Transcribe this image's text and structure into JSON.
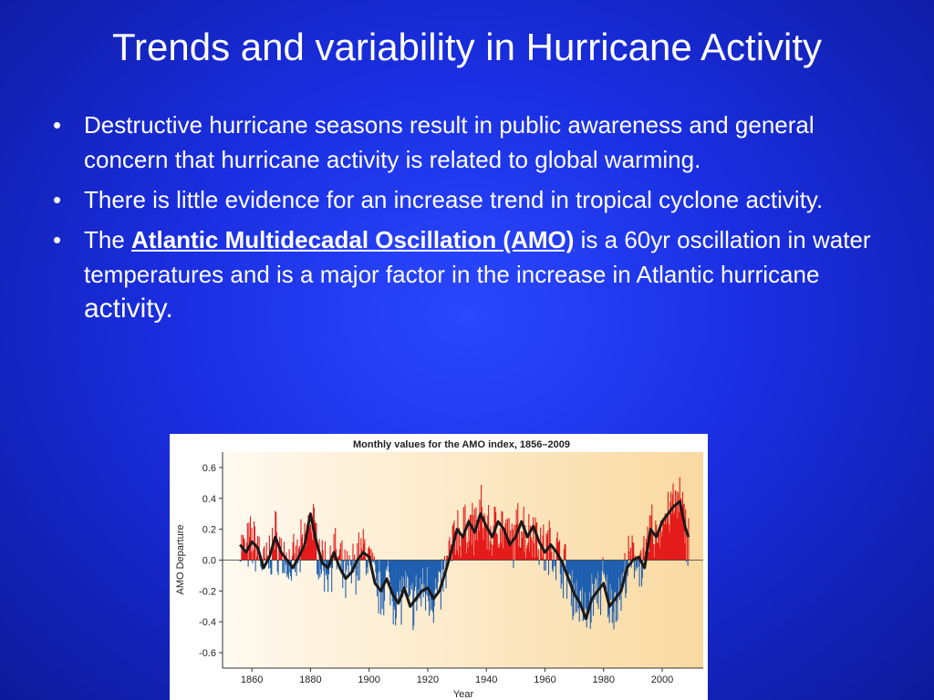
{
  "slide": {
    "title": "Trends and variability in Hurricane Activity",
    "bullets": [
      {
        "marker": "•",
        "text": "Destructive hurricane seasons result in public awareness and general concern that hurricane activity is related to global warming."
      },
      {
        "marker": "•",
        "text": "There is little evidence for an increase trend in tropical cyclone activity."
      },
      {
        "marker": "•",
        "prefix": "The ",
        "link": "Atlantic Multidecadal Oscillation (AMO)",
        "middle": " is a 60yr oscillation in water temperatures and is a major factor in the increase in Atlantic hurricane ",
        "tail": "activity."
      }
    ]
  },
  "colors": {
    "positive": "#e41a1a",
    "negative": "#1f5fb0",
    "smooth_line": "#1a1a1a",
    "plot_bg_light": "#fffaf0",
    "plot_bg_warm": "#f9d9a0"
  },
  "chart_data": {
    "type": "area",
    "title": "Monthly values for the AMO index, 1856–2009",
    "xlabel": "Year",
    "ylabel": "AMO Departure",
    "xlim": [
      1850,
      2014
    ],
    "ylim": [
      -0.7,
      0.7
    ],
    "x_ticks": [
      1860,
      1880,
      1900,
      1920,
      1940,
      1960,
      1980,
      2000
    ],
    "y_ticks": [
      -0.6,
      -0.4,
      -0.2,
      0.0,
      0.2,
      0.4,
      0.6
    ],
    "y_tick_labels": [
      "-0.6",
      "-0.4",
      "-0.2",
      "0.0",
      "0.2",
      "0.4",
      "0.6"
    ],
    "grid": false,
    "baseline": 0.0,
    "smoothed_series": {
      "x": [
        1856,
        1858,
        1860,
        1862,
        1864,
        1866,
        1868,
        1870,
        1872,
        1874,
        1876,
        1878,
        1880,
        1882,
        1884,
        1886,
        1888,
        1890,
        1892,
        1894,
        1896,
        1898,
        1900,
        1902,
        1904,
        1906,
        1908,
        1910,
        1912,
        1914,
        1916,
        1918,
        1920,
        1922,
        1924,
        1926,
        1928,
        1930,
        1932,
        1934,
        1936,
        1938,
        1940,
        1942,
        1944,
        1946,
        1948,
        1950,
        1952,
        1954,
        1956,
        1958,
        1960,
        1962,
        1964,
        1966,
        1968,
        1970,
        1972,
        1974,
        1976,
        1978,
        1980,
        1982,
        1984,
        1986,
        1988,
        1990,
        1992,
        1994,
        1996,
        1998,
        2000,
        2002,
        2004,
        2006,
        2008,
        2009
      ],
      "y": [
        0.1,
        0.05,
        0.12,
        0.08,
        -0.05,
        0.02,
        0.15,
        0.05,
        0.0,
        -0.05,
        0.02,
        0.1,
        0.3,
        0.12,
        -0.02,
        -0.05,
        0.05,
        -0.05,
        -0.12,
        -0.08,
        0.0,
        0.05,
        0.02,
        -0.15,
        -0.2,
        -0.12,
        -0.22,
        -0.28,
        -0.18,
        -0.3,
        -0.25,
        -0.2,
        -0.18,
        -0.25,
        -0.2,
        -0.08,
        0.05,
        0.2,
        0.15,
        0.25,
        0.18,
        0.3,
        0.22,
        0.15,
        0.25,
        0.2,
        0.1,
        0.15,
        0.25,
        0.15,
        0.22,
        0.12,
        0.05,
        0.1,
        0.05,
        -0.02,
        -0.12,
        -0.22,
        -0.28,
        -0.38,
        -0.25,
        -0.2,
        -0.15,
        -0.3,
        -0.25,
        -0.2,
        -0.05,
        0.0,
        0.02,
        -0.05,
        0.2,
        0.15,
        0.25,
        0.3,
        0.35,
        0.38,
        0.2,
        0.15
      ]
    }
  }
}
